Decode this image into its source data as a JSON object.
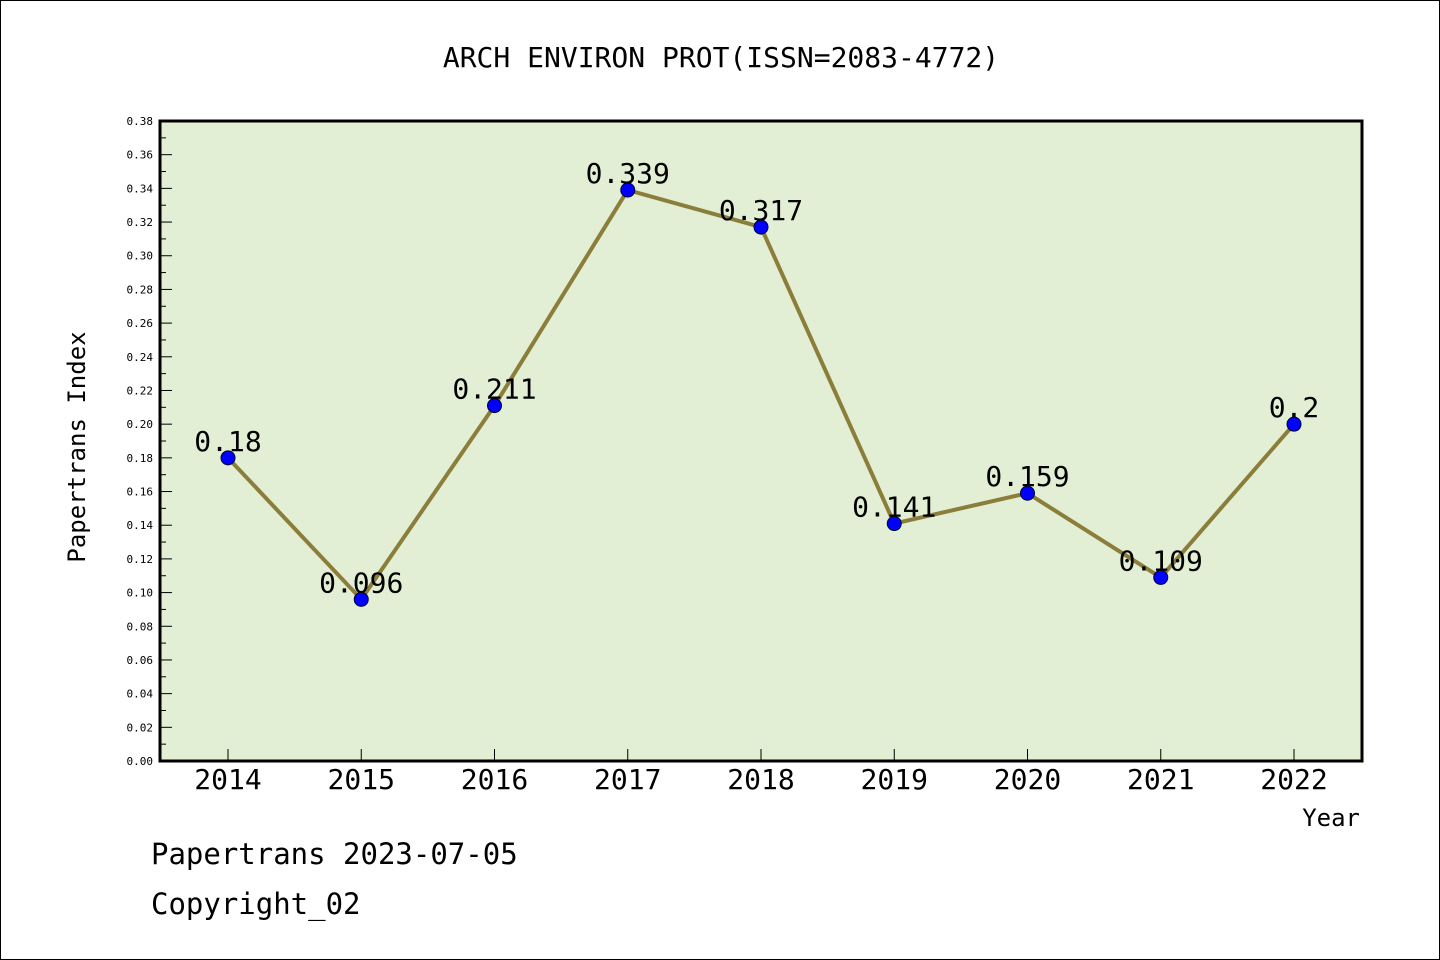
{
  "chart_data": {
    "type": "line",
    "title": "ARCH ENVIRON PROT(ISSN=2083-4772)",
    "xlabel": "Year",
    "ylabel": "Papertrans Index",
    "categories": [
      "2014",
      "2015",
      "2016",
      "2017",
      "2018",
      "2019",
      "2020",
      "2021",
      "2022"
    ],
    "series": [
      {
        "values": [
          0.18,
          0.096,
          0.211,
          0.339,
          0.317,
          0.141,
          0.159,
          0.109,
          0.2
        ],
        "labels": [
          "0.18",
          "0.096",
          "0.211",
          "0.339",
          "0.317",
          "0.141",
          "0.159",
          "0.109",
          "0.2"
        ],
        "line_color": "#8B7D3A",
        "marker_color": "#0000FF"
      }
    ],
    "ylim": [
      0,
      0.38
    ],
    "yticks": [
      "0.00",
      "0.02",
      "0.04",
      "0.06",
      "0.08",
      "0.10",
      "0.12",
      "0.14",
      "0.16",
      "0.18",
      "0.20",
      "0.22",
      "0.24",
      "0.26",
      "0.28",
      "0.30",
      "0.32",
      "0.34",
      "0.36",
      "0.38"
    ],
    "plot_background": "#E2EFD4",
    "grid": false,
    "legend": "none"
  },
  "footer": {
    "line1": "Papertrans 2023-07-05",
    "line2": "Copyright_02"
  }
}
